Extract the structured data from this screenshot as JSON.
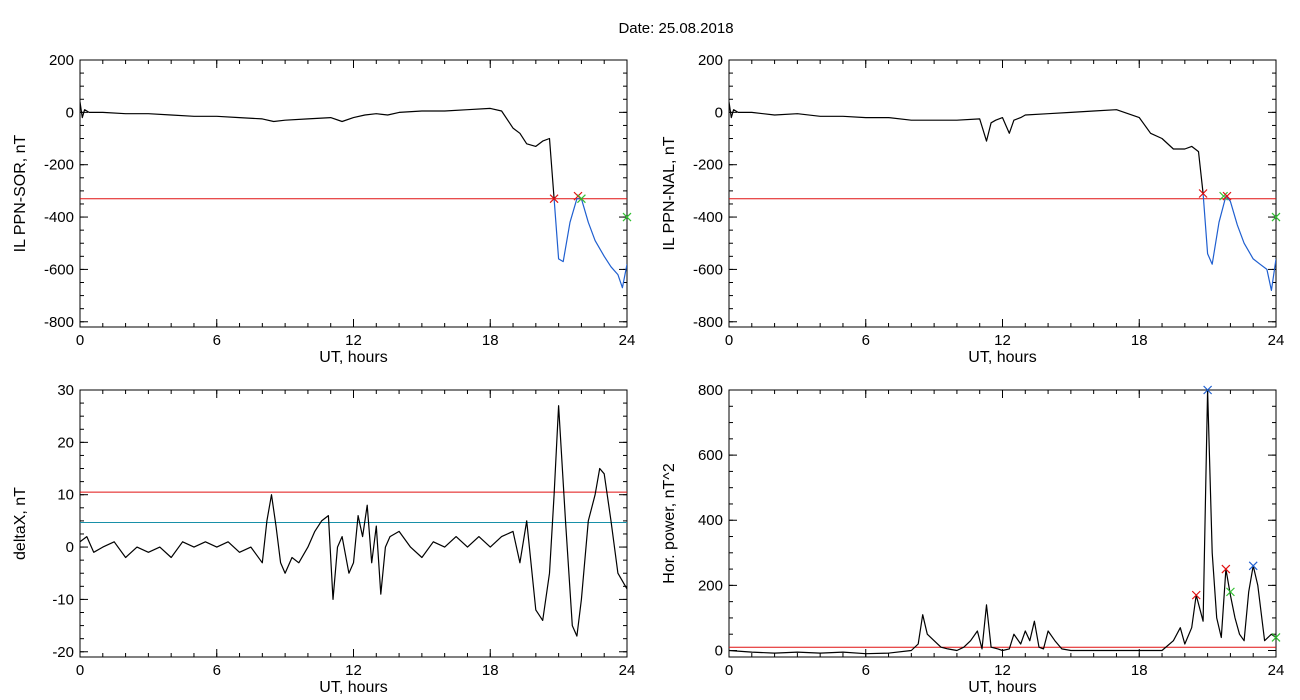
{
  "figure": {
    "title": "Date:  25.08.2018"
  },
  "colors": {
    "trace": "#000000",
    "threshold": "#e01010",
    "blue_trace": "#1f5fd0",
    "cyan_line": "#1890a8",
    "green_marker": "#30c030",
    "red_marker": "#e01010",
    "blue_marker": "#1f5fd0"
  },
  "chart_data": [
    {
      "id": "sor",
      "type": "line",
      "title": "",
      "xlabel": "UT, hours",
      "ylabel": "IL PPN-SOR, nT",
      "xlim": [
        0,
        24
      ],
      "ylim": [
        -820,
        200
      ],
      "xticks": [
        0,
        6,
        12,
        18,
        24
      ],
      "yticks": [
        -800,
        -600,
        -400,
        -200,
        0,
        200
      ],
      "grid": false,
      "legend": "none",
      "threshold": -330,
      "series": [
        {
          "color": "black",
          "x": [
            0,
            0.1,
            0.2,
            0.4,
            1,
            2,
            3,
            4,
            5,
            6,
            7,
            8,
            8.5,
            9,
            10,
            11,
            11.5,
            12,
            12.5,
            13,
            13.5,
            14,
            15,
            16,
            17,
            18,
            18.5,
            19,
            19.3,
            19.6,
            20,
            20.3,
            20.6,
            20.8
          ],
          "y": [
            40,
            -20,
            10,
            0,
            0,
            -5,
            -5,
            -10,
            -15,
            -15,
            -20,
            -25,
            -35,
            -30,
            -25,
            -20,
            -35,
            -20,
            -10,
            -5,
            -10,
            0,
            5,
            5,
            10,
            15,
            5,
            -60,
            -80,
            -120,
            -130,
            -110,
            -100,
            -330
          ]
        },
        {
          "color": "blue",
          "x": [
            20.8,
            21.0,
            21.2,
            21.5,
            21.8,
            22.0,
            22.3,
            22.6,
            23.0,
            23.3,
            23.6,
            23.8,
            24.0
          ],
          "y": [
            -330,
            -560,
            -570,
            -420,
            -330,
            -330,
            -420,
            -490,
            -550,
            -590,
            -620,
            -670,
            -580
          ]
        }
      ],
      "markers": [
        {
          "x": 20.8,
          "y": -330,
          "color": "red"
        },
        {
          "x": 21.85,
          "y": -320,
          "color": "red"
        },
        {
          "x": 22.0,
          "y": -330,
          "color": "green"
        },
        {
          "x": 24.0,
          "y": -400,
          "color": "green"
        }
      ]
    },
    {
      "id": "nal",
      "type": "line",
      "title": "",
      "xlabel": "UT, hours",
      "ylabel": "IL PPN-NAL, nT",
      "xlim": [
        0,
        24
      ],
      "ylim": [
        -820,
        200
      ],
      "xticks": [
        0,
        6,
        12,
        18,
        24
      ],
      "yticks": [
        -800,
        -600,
        -400,
        -200,
        0,
        200
      ],
      "grid": false,
      "legend": "none",
      "threshold": -330,
      "series": [
        {
          "color": "black",
          "x": [
            0,
            0.1,
            0.2,
            0.4,
            1,
            2,
            3,
            4,
            5,
            6,
            7,
            8,
            9,
            10,
            11,
            11.3,
            11.5,
            11.7,
            12,
            12.3,
            12.5,
            12.8,
            13,
            14,
            15,
            16,
            17,
            18,
            18.5,
            19,
            19.5,
            20,
            20.3,
            20.6,
            20.8
          ],
          "y": [
            40,
            -20,
            10,
            0,
            0,
            -10,
            -5,
            -15,
            -15,
            -20,
            -20,
            -30,
            -30,
            -30,
            -25,
            -110,
            -40,
            -30,
            -20,
            -80,
            -30,
            -20,
            -10,
            -5,
            0,
            5,
            10,
            -20,
            -80,
            -100,
            -140,
            -140,
            -130,
            -150,
            -310
          ]
        },
        {
          "color": "blue",
          "x": [
            20.8,
            21.0,
            21.2,
            21.5,
            21.8,
            22.0,
            22.3,
            22.6,
            23.0,
            23.3,
            23.6,
            23.8,
            24.0
          ],
          "y": [
            -310,
            -540,
            -580,
            -420,
            -320,
            -340,
            -430,
            -500,
            -560,
            -580,
            -600,
            -680,
            -560
          ]
        }
      ],
      "markers": [
        {
          "x": 20.8,
          "y": -310,
          "color": "red"
        },
        {
          "x": 21.7,
          "y": -320,
          "color": "green"
        },
        {
          "x": 21.85,
          "y": -320,
          "color": "red"
        },
        {
          "x": 24.0,
          "y": -400,
          "color": "green"
        }
      ]
    },
    {
      "id": "deltax",
      "type": "line",
      "title": "",
      "xlabel": "UT, hours",
      "ylabel": "deltaX, nT",
      "xlim": [
        0,
        24
      ],
      "ylim": [
        -21,
        30
      ],
      "xticks": [
        0,
        6,
        12,
        18,
        24
      ],
      "yticks": [
        -20,
        -10,
        0,
        10,
        20,
        30
      ],
      "grid": false,
      "legend": "none",
      "threshold": 10.5,
      "cyan_level": 4.7,
      "series": [
        {
          "color": "black",
          "x": [
            0,
            0.3,
            0.6,
            1,
            1.5,
            2,
            2.5,
            3,
            3.5,
            4,
            4.5,
            5,
            5.5,
            6,
            6.5,
            7,
            7.5,
            8,
            8.2,
            8.4,
            8.6,
            8.8,
            9,
            9.3,
            9.6,
            10,
            10.3,
            10.6,
            10.9,
            11.1,
            11.3,
            11.5,
            11.8,
            12,
            12.2,
            12.4,
            12.6,
            12.8,
            13,
            13.2,
            13.4,
            13.6,
            14,
            14.5,
            15,
            15.5,
            16,
            16.5,
            17,
            17.5,
            18,
            18.5,
            19,
            19.3,
            19.6,
            20,
            20.3,
            20.6,
            20.8,
            21.0,
            21.3,
            21.6,
            21.8,
            22.0,
            22.3,
            22.6,
            22.8,
            23.0,
            23.3,
            23.6,
            24.0
          ],
          "y": [
            1,
            2,
            -1,
            0,
            1,
            -2,
            0,
            -1,
            0,
            -2,
            1,
            0,
            1,
            0,
            1,
            -1,
            0,
            -3,
            5,
            10,
            4,
            -3,
            -5,
            -2,
            -3,
            0,
            3,
            5,
            6,
            -10,
            0,
            2,
            -5,
            -3,
            6,
            2,
            8,
            -3,
            4,
            -9,
            0,
            2,
            3,
            0,
            -2,
            1,
            0,
            2,
            0,
            2,
            0,
            2,
            3,
            -3,
            5,
            -12,
            -14,
            -5,
            10,
            27,
            5,
            -15,
            -17,
            -10,
            5,
            10,
            15,
            14,
            5,
            -5,
            -8
          ]
        }
      ],
      "markers": []
    },
    {
      "id": "power",
      "type": "line",
      "title": "",
      "xlabel": "UT, hours",
      "ylabel": "Hor. power, nT^2",
      "xlim": [
        0,
        24
      ],
      "ylim": [
        -20,
        800
      ],
      "xticks": [
        0,
        6,
        12,
        18,
        24
      ],
      "yticks": [
        0,
        200,
        400,
        600,
        800
      ],
      "grid": false,
      "legend": "none",
      "threshold": 10,
      "series": [
        {
          "color": "black",
          "x": [
            0,
            1,
            2,
            3,
            4,
            5,
            6,
            7,
            8,
            8.3,
            8.5,
            8.7,
            9,
            9.3,
            9.6,
            10,
            10.3,
            10.6,
            10.9,
            11.1,
            11.3,
            11.5,
            11.8,
            12,
            12.3,
            12.5,
            12.8,
            13,
            13.2,
            13.4,
            13.6,
            13.8,
            14,
            14.3,
            14.6,
            15,
            15.5,
            16,
            17,
            18,
            19,
            19.5,
            19.8,
            20.0,
            20.3,
            20.5,
            20.8,
            21.0,
            21.2,
            21.4,
            21.6,
            21.8,
            22.0,
            22.2,
            22.4,
            22.6,
            22.8,
            23.0,
            23.2,
            23.5,
            23.8,
            24.0
          ],
          "y": [
            0,
            -5,
            -8,
            -5,
            -8,
            -5,
            -10,
            -8,
            0,
            20,
            110,
            50,
            30,
            10,
            5,
            0,
            10,
            30,
            60,
            5,
            140,
            10,
            5,
            0,
            5,
            50,
            20,
            60,
            30,
            90,
            10,
            5,
            60,
            30,
            5,
            0,
            0,
            0,
            0,
            0,
            0,
            30,
            70,
            20,
            70,
            170,
            90,
            800,
            300,
            100,
            40,
            250,
            170,
            100,
            50,
            30,
            180,
            260,
            200,
            30,
            50,
            40
          ]
        }
      ],
      "markers": [
        {
          "x": 20.5,
          "y": 170,
          "color": "red"
        },
        {
          "x": 21.0,
          "y": 800,
          "color": "blue"
        },
        {
          "x": 21.8,
          "y": 250,
          "color": "red"
        },
        {
          "x": 22.0,
          "y": 180,
          "color": "green"
        },
        {
          "x": 23.0,
          "y": 260,
          "color": "blue"
        },
        {
          "x": 24.0,
          "y": 40,
          "color": "green"
        }
      ]
    }
  ]
}
